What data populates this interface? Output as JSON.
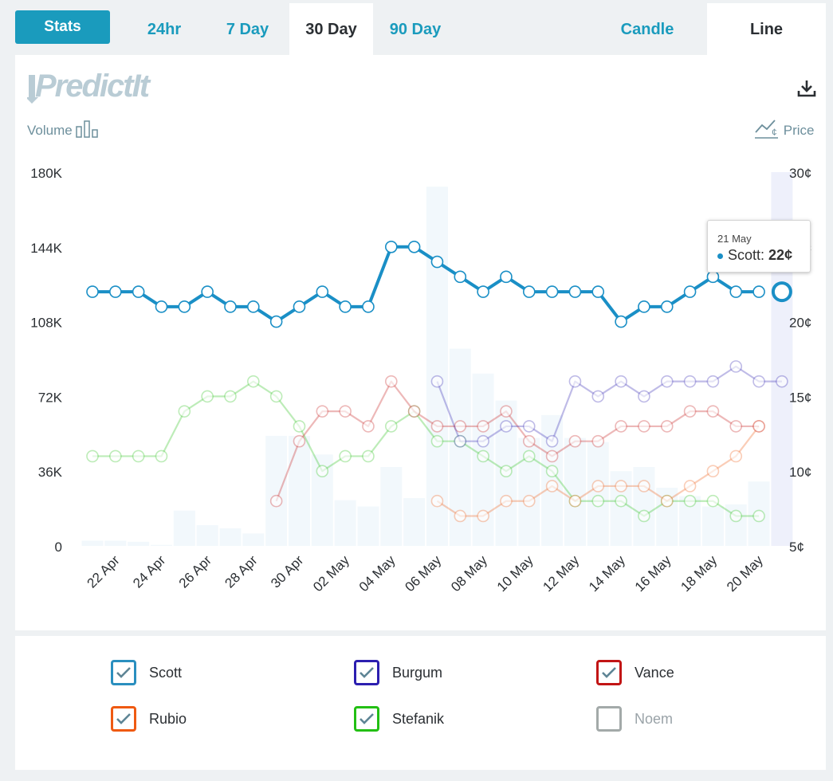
{
  "toolbar": {
    "stats_label": "Stats",
    "ranges": [
      "24hr",
      "7 Day",
      "30 Day",
      "90 Day"
    ],
    "active_range": "30 Day",
    "chart_types": [
      "Candle",
      "Line"
    ],
    "active_chart_type": "Line"
  },
  "logo_text": "PredictIt",
  "labels": {
    "volume": "Volume",
    "price": "Price"
  },
  "tooltip": {
    "date": "21 May",
    "series": "Scott",
    "value": "22¢"
  },
  "legend": [
    {
      "name": "Scott",
      "color": "#2a8fbf",
      "checked": true
    },
    {
      "name": "Burgum",
      "color": "#2c1fb0",
      "checked": true
    },
    {
      "name": "Vance",
      "color": "#c21515",
      "checked": true
    },
    {
      "name": "Rubio",
      "color": "#ef5a12",
      "checked": true
    },
    {
      "name": "Stefanik",
      "color": "#23bf14",
      "checked": true
    },
    {
      "name": "Noem",
      "color": "#a3aaa9",
      "checked": false
    }
  ],
  "chart_data": {
    "type": "line",
    "title": "",
    "x": [
      "21 Apr",
      "22 Apr",
      "23 Apr",
      "24 Apr",
      "25 Apr",
      "26 Apr",
      "27 Apr",
      "28 Apr",
      "29 Apr",
      "30 Apr",
      "01 May",
      "02 May",
      "03 May",
      "04 May",
      "05 May",
      "06 May",
      "07 May",
      "08 May",
      "09 May",
      "10 May",
      "11 May",
      "12 May",
      "13 May",
      "14 May",
      "15 May",
      "16 May",
      "17 May",
      "18 May",
      "19 May",
      "20 May",
      "21 May"
    ],
    "x_tick_labels": [
      "22 Apr",
      "24 Apr",
      "26 Apr",
      "28 Apr",
      "30 Apr",
      "02 May",
      "04 May",
      "06 May",
      "08 May",
      "10 May",
      "12 May",
      "14 May",
      "16 May",
      "18 May",
      "20 May"
    ],
    "y_left": {
      "label": "Volume",
      "ticks": [
        "0",
        "36K",
        "72K",
        "108K",
        "144K",
        "180K"
      ],
      "range": [
        0,
        180000
      ]
    },
    "y_right": {
      "label": "Price",
      "ticks": [
        "5¢",
        "10¢",
        "15¢",
        "20¢",
        "25¢",
        "30¢"
      ],
      "range": [
        5,
        30
      ]
    },
    "volume": [
      2500,
      2500,
      2000,
      500,
      17000,
      10000,
      8500,
      6000,
      53000,
      53000,
      44000,
      22000,
      19000,
      38000,
      23000,
      173000,
      95000,
      83000,
      70000,
      52000,
      63000,
      52000,
      50000,
      36000,
      38000,
      28000,
      24000,
      19000,
      20000,
      31000,
      180000
    ],
    "series": [
      {
        "name": "Scott",
        "values": [
          22,
          22,
          22,
          21,
          21,
          22,
          21,
          21,
          20,
          21,
          22,
          21,
          21,
          25,
          25,
          24,
          23,
          22,
          23,
          22,
          22,
          22,
          22,
          20,
          21,
          21,
          22,
          23,
          22,
          22,
          null
        ]
      },
      {
        "name": "Burgum",
        "values": [
          null,
          null,
          null,
          null,
          null,
          null,
          null,
          null,
          null,
          null,
          null,
          null,
          null,
          null,
          null,
          16,
          12,
          12,
          13,
          13,
          12,
          16,
          15,
          16,
          15,
          16,
          16,
          16,
          17,
          16,
          16
        ]
      },
      {
        "name": "Vance",
        "values": [
          null,
          null,
          null,
          null,
          null,
          null,
          null,
          null,
          8,
          12,
          14,
          14,
          13,
          16,
          14,
          13,
          13,
          13,
          14,
          12,
          11,
          12,
          12,
          13,
          13,
          13,
          14,
          14,
          13,
          13,
          null
        ]
      },
      {
        "name": "Rubio",
        "values": [
          null,
          null,
          null,
          null,
          null,
          null,
          null,
          null,
          null,
          null,
          null,
          null,
          null,
          null,
          null,
          8,
          7,
          7,
          8,
          8,
          9,
          8,
          9,
          9,
          9,
          8,
          9,
          10,
          11,
          13,
          null
        ]
      },
      {
        "name": "Stefanik",
        "values": [
          11,
          11,
          11,
          11,
          14,
          15,
          15,
          16,
          15,
          13,
          10,
          11,
          11,
          13,
          14,
          12,
          12,
          11,
          10,
          11,
          10,
          8,
          8,
          8,
          7,
          8,
          8,
          8,
          7,
          7,
          null
        ]
      }
    ],
    "highlight": {
      "x": "21 May",
      "series": "Scott",
      "value": 22
    }
  }
}
